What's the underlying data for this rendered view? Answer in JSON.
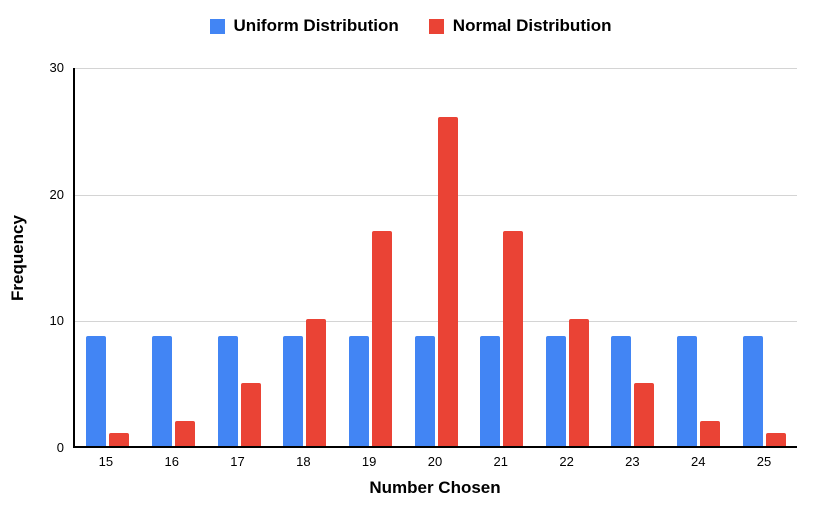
{
  "chart_data": {
    "type": "bar",
    "title": "",
    "categories": [
      "15",
      "16",
      "17",
      "18",
      "19",
      "20",
      "21",
      "22",
      "23",
      "24",
      "25"
    ],
    "series": [
      {
        "name": "Uniform Distribution",
        "color": "#4285F4",
        "values": [
          8.7,
          8.7,
          8.7,
          8.7,
          8.7,
          8.7,
          8.7,
          8.7,
          8.7,
          8.7,
          8.7
        ]
      },
      {
        "name": "Normal Distribution",
        "color": "#EA4335",
        "values": [
          1,
          2,
          5,
          10,
          17,
          26,
          17,
          10,
          5,
          2,
          1
        ]
      }
    ],
    "xlabel": "Number Chosen",
    "ylabel": "Frequency",
    "ylim": [
      0,
      30
    ],
    "yticks": [
      0,
      10,
      20,
      30
    ],
    "grid": true,
    "legend_position": "top",
    "colors": {
      "gridline": "#d4d4d4",
      "axis": "#000000",
      "text": "#000000",
      "background": "#ffffff"
    }
  }
}
